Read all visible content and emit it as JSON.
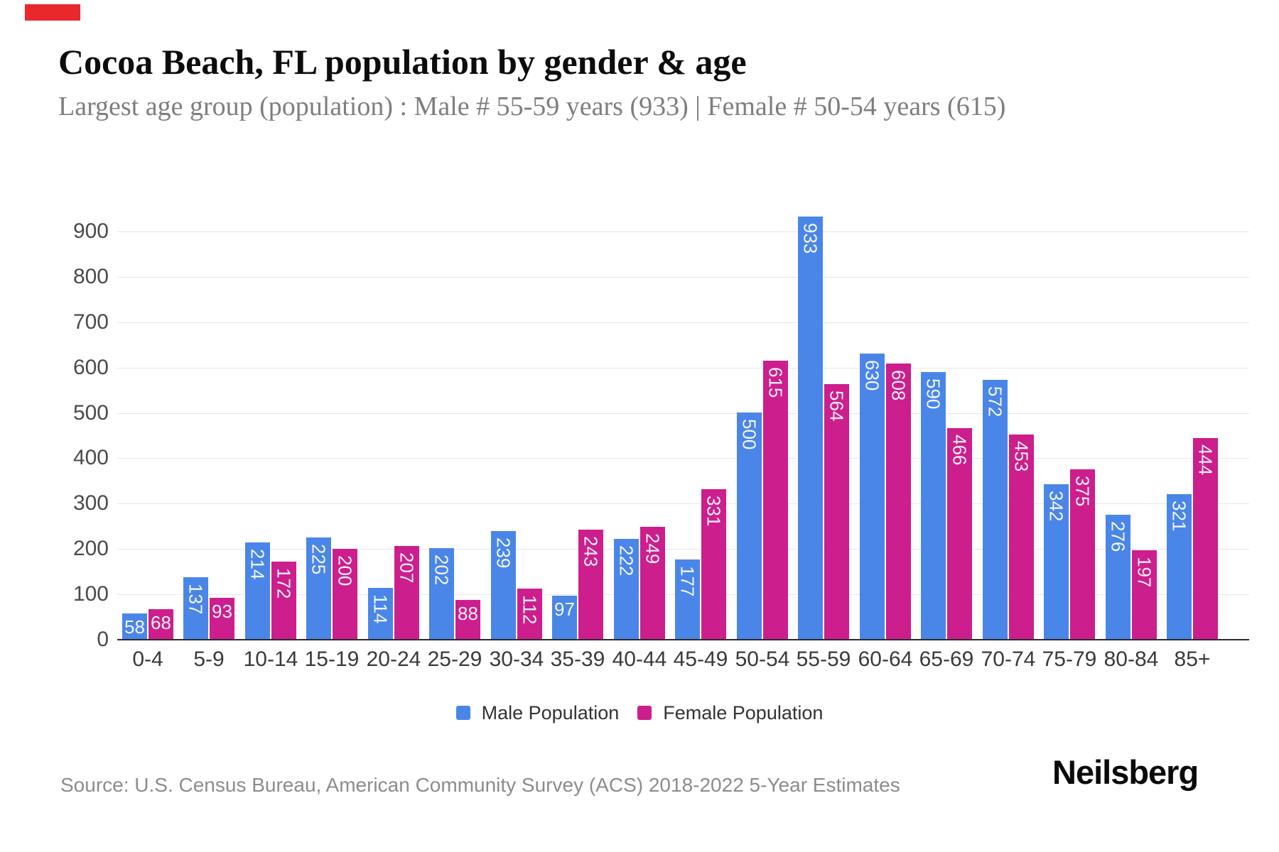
{
  "header": {
    "title": "Cocoa Beach, FL population by gender & age",
    "subtitle": "Largest age group (population) : Male # 55-59 years (933) | Female # 50-54 years (615)"
  },
  "footer": {
    "source": "Source: U.S. Census Bureau, American Community Survey (ACS) 2018-2022 5-Year Estimates",
    "brand": "Neilsberg"
  },
  "colors": {
    "male": "#4a86e8",
    "female": "#cc1e8c",
    "accent_red": "#e9282e",
    "gridline": "#e7e7e7",
    "axis_line": "#2b2b2b",
    "bar_value_label": "#ffffff"
  },
  "chart_data": {
    "type": "bar",
    "title": "Cocoa Beach, FL population by gender & age",
    "categories": [
      "0-4",
      "5-9",
      "10-14",
      "15-19",
      "20-24",
      "25-29",
      "30-34",
      "35-39",
      "40-44",
      "45-49",
      "50-54",
      "55-59",
      "60-64",
      "65-69",
      "70-74",
      "75-79",
      "80-84",
      "85+"
    ],
    "series": [
      {
        "name": "Male Population",
        "color": "#4a86e8",
        "values": [
          58,
          137,
          214,
          225,
          114,
          202,
          239,
          97,
          222,
          177,
          500,
          933,
          630,
          590,
          572,
          342,
          276,
          321
        ]
      },
      {
        "name": "Female Population",
        "color": "#cc1e8c",
        "values": [
          68,
          93,
          172,
          200,
          207,
          88,
          112,
          243,
          249,
          331,
          615,
          564,
          608,
          466,
          453,
          375,
          197,
          444
        ]
      }
    ],
    "xlabel": "",
    "ylabel": "",
    "ylim": [
      0,
      960
    ],
    "yticks": [
      0,
      100,
      200,
      300,
      400,
      500,
      600,
      700,
      800,
      900
    ],
    "grid": true,
    "legend_position": "bottom",
    "bar_value_labels": true,
    "value_label_rotation_rule": "vertical if value >= 100, horizontal otherwise"
  }
}
